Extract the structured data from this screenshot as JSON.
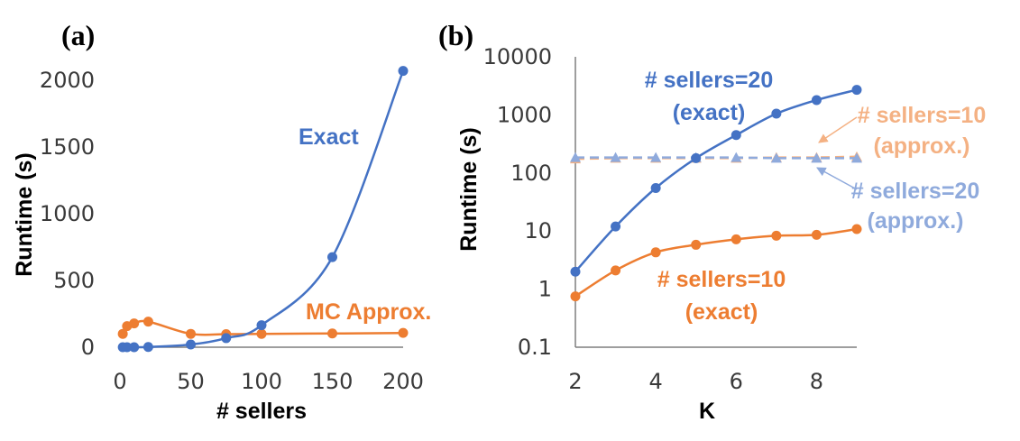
{
  "colors": {
    "blue": "#4472C4",
    "orange": "#ED7D31",
    "light_orange": "#F4B183",
    "light_blue": "#8FAADC",
    "axis": "#7F7F7F"
  },
  "chart_data": [
    {
      "panel": "(a)",
      "type": "line",
      "xlabel": "# sellers",
      "ylabel": "Runtime (s)",
      "xlim": [
        0,
        200
      ],
      "ylim": [
        0,
        2000
      ],
      "x_ticks": [
        "0",
        "50",
        "100",
        "150",
        "200"
      ],
      "y_ticks": [
        "0",
        "500",
        "1000",
        "1500",
        "2000"
      ],
      "series": [
        {
          "name": "Exact",
          "color": "#4472C4",
          "x": [
            2,
            5,
            10,
            20,
            50,
            75,
            100,
            150,
            200
          ],
          "y": [
            0,
            0,
            0,
            2,
            20,
            68,
            165,
            675,
            2070
          ]
        },
        {
          "name": "MC Approx.",
          "color": "#ED7D31",
          "x": [
            2,
            5,
            10,
            20,
            50,
            75,
            100,
            150,
            200
          ],
          "y": [
            100,
            158,
            178,
            192,
            100,
            98,
            100,
            103,
            107
          ]
        }
      ]
    },
    {
      "panel": "(b)",
      "type": "line",
      "xlabel": "K",
      "ylabel": "Runtime (s)",
      "xlim": [
        2,
        9
      ],
      "ylim": [
        0.1,
        10000
      ],
      "yscale": "log",
      "x_ticks": [
        "2",
        "4",
        "6",
        "8"
      ],
      "y_ticks": [
        "0.1",
        "1",
        "10",
        "100",
        "1000",
        "10000"
      ],
      "series": [
        {
          "name": "# sellers=20 (exact)",
          "line1": "# sellers=20",
          "line2": "(exact)",
          "color": "#4472C4",
          "style": "solid",
          "marker": "circle",
          "x": [
            2,
            3,
            4,
            5,
            6,
            7,
            8,
            9
          ],
          "y": [
            2,
            12,
            55,
            180,
            450,
            1050,
            1800,
            2700
          ]
        },
        {
          "name": "# sellers=10 (exact)",
          "line1": "# sellers=10",
          "line2": "(exact)",
          "color": "#ED7D31",
          "style": "solid",
          "marker": "circle",
          "x": [
            2,
            3,
            4,
            5,
            6,
            7,
            8,
            9
          ],
          "y": [
            0.75,
            2.1,
            4.3,
            5.8,
            7.2,
            8.3,
            8.6,
            10.8
          ]
        },
        {
          "name": "# sellers=10 (approx.)",
          "line1": "# sellers=10",
          "line2": "(approx.)",
          "color": "#F4B183",
          "style": "dashed",
          "marker": "triangle",
          "x": [
            2,
            3,
            4,
            5,
            6,
            7,
            8,
            9
          ],
          "y": [
            175,
            180,
            180,
            180,
            180,
            185,
            185,
            190
          ]
        },
        {
          "name": "# sellers=20 (approx.)",
          "line1": "# sellers=20",
          "line2": "(approx.)",
          "color": "#8FAADC",
          "style": "dashed",
          "marker": "triangle",
          "x": [
            2,
            3,
            4,
            5,
            6,
            7,
            8,
            9
          ],
          "y": [
            185,
            185,
            185,
            185,
            185,
            180,
            180,
            180
          ]
        }
      ]
    }
  ]
}
